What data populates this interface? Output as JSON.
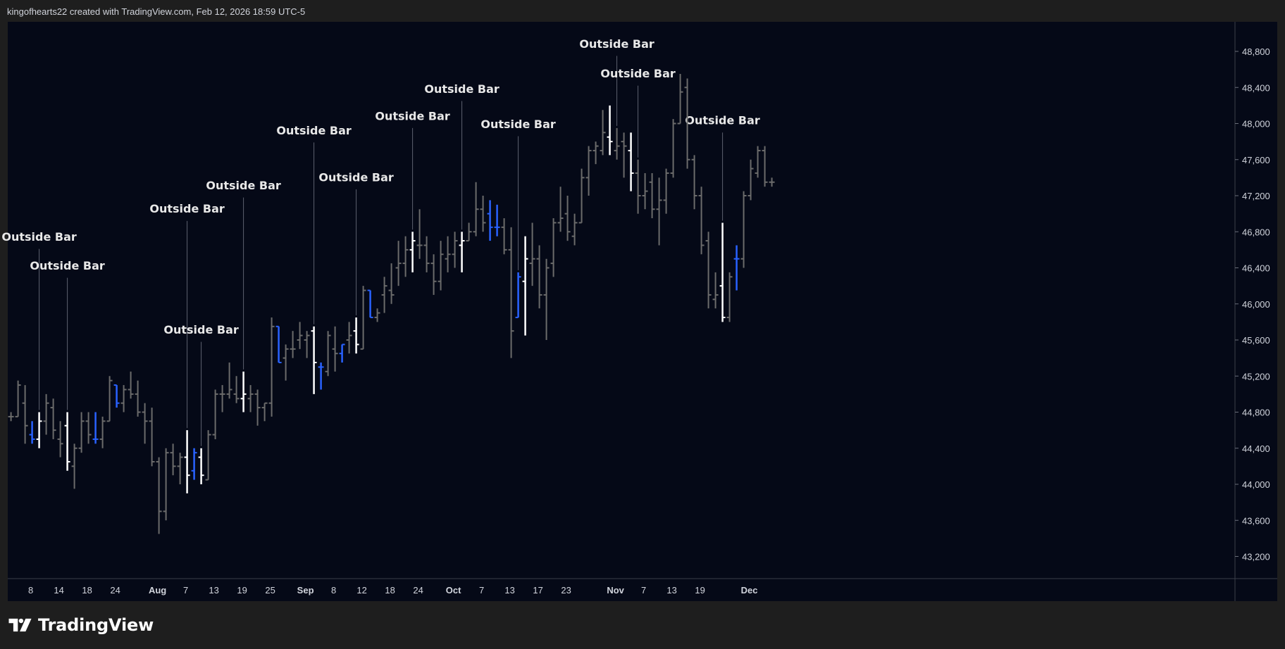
{
  "header": {
    "attribution": "kingofhearts22 created with TradingView.com, Feb 12, 2026 18:59 UTC-5"
  },
  "branding": {
    "logo_icon": "tradingview-logo-icon",
    "wordmark": "TradingView"
  },
  "colors": {
    "background": "#050917",
    "bar_gray": "#6b6b6b",
    "bar_white": "#ffffff",
    "bar_blue": "#2962ff",
    "annotation_text": "#e8e8e8",
    "axis_text": "#d1d4dc"
  },
  "chart_data": {
    "type": "ohlc",
    "title": "",
    "xlabel": "",
    "ylabel": "",
    "ylim": [
      42800,
      49100
    ],
    "grid": false,
    "legend": "none",
    "y_ticks": [
      "48,800",
      "48,400",
      "48,000",
      "47,600",
      "47,200",
      "46,800",
      "46,400",
      "46,000",
      "45,600",
      "45,200",
      "44,800",
      "44,400",
      "44,000",
      "43,600",
      "43,200"
    ],
    "x_ticks": [
      {
        "label": "8",
        "bar": 3,
        "bold": false
      },
      {
        "label": "14",
        "bar": 7,
        "bold": false
      },
      {
        "label": "18",
        "bar": 11,
        "bold": false
      },
      {
        "label": "24",
        "bar": 15,
        "bold": false
      },
      {
        "label": "Aug",
        "bar": 21,
        "bold": true
      },
      {
        "label": "7",
        "bar": 25,
        "bold": false
      },
      {
        "label": "13",
        "bar": 29,
        "bold": false
      },
      {
        "label": "19",
        "bar": 33,
        "bold": false
      },
      {
        "label": "25",
        "bar": 37,
        "bold": false
      },
      {
        "label": "Sep",
        "bar": 42,
        "bold": true
      },
      {
        "label": "8",
        "bar": 46,
        "bold": false
      },
      {
        "label": "12",
        "bar": 50,
        "bold": false
      },
      {
        "label": "18",
        "bar": 54,
        "bold": false
      },
      {
        "label": "24",
        "bar": 58,
        "bold": false
      },
      {
        "label": "Oct",
        "bar": 63,
        "bold": true
      },
      {
        "label": "7",
        "bar": 67,
        "bold": false
      },
      {
        "label": "13",
        "bar": 71,
        "bold": false
      },
      {
        "label": "17",
        "bar": 75,
        "bold": false
      },
      {
        "label": "23",
        "bar": 79,
        "bold": false
      },
      {
        "label": "Nov",
        "bar": 86,
        "bold": true
      },
      {
        "label": "7",
        "bar": 90,
        "bold": false
      },
      {
        "label": "13",
        "bar": 94,
        "bold": false
      },
      {
        "label": "19",
        "bar": 98,
        "bold": false
      },
      {
        "label": "Dec",
        "bar": 105,
        "bold": true
      }
    ],
    "bars": [
      {
        "o": 44750,
        "h": 44800,
        "l": 44700,
        "c": 44750,
        "color": "gray"
      },
      {
        "o": 44750,
        "h": 45150,
        "l": 44750,
        "c": 45100,
        "color": "gray"
      },
      {
        "o": 44900,
        "h": 45100,
        "l": 44450,
        "c": 44650,
        "color": "gray"
      },
      {
        "o": 44550,
        "h": 44700,
        "l": 44450,
        "c": 44500,
        "color": "blue"
      },
      {
        "o": 44500,
        "h": 44800,
        "l": 44400,
        "c": 44700,
        "color": "white"
      },
      {
        "o": 44700,
        "h": 45000,
        "l": 44550,
        "c": 44900,
        "color": "gray"
      },
      {
        "o": 44850,
        "h": 44950,
        "l": 44500,
        "c": 44600,
        "color": "gray"
      },
      {
        "o": 44500,
        "h": 44700,
        "l": 44300,
        "c": 44450,
        "color": "gray"
      },
      {
        "o": 44650,
        "h": 44800,
        "l": 44150,
        "c": 44250,
        "color": "white"
      },
      {
        "o": 44200,
        "h": 44450,
        "l": 43950,
        "c": 44400,
        "color": "gray"
      },
      {
        "o": 44400,
        "h": 44800,
        "l": 44350,
        "c": 44700,
        "color": "gray"
      },
      {
        "o": 44700,
        "h": 44800,
        "l": 44450,
        "c": 44550,
        "color": "gray"
      },
      {
        "o": 44500,
        "h": 44800,
        "l": 44450,
        "c": 44500,
        "color": "blue"
      },
      {
        "o": 44500,
        "h": 44750,
        "l": 44400,
        "c": 44700,
        "color": "gray"
      },
      {
        "o": 44700,
        "h": 45200,
        "l": 44700,
        "c": 45150,
        "color": "gray"
      },
      {
        "o": 45100,
        "h": 45100,
        "l": 44850,
        "c": 44900,
        "color": "blue"
      },
      {
        "o": 44900,
        "h": 45100,
        "l": 44800,
        "c": 45050,
        "color": "gray"
      },
      {
        "o": 45050,
        "h": 45250,
        "l": 44950,
        "c": 45000,
        "color": "gray"
      },
      {
        "o": 45000,
        "h": 45150,
        "l": 44750,
        "c": 44800,
        "color": "gray"
      },
      {
        "o": 44800,
        "h": 44900,
        "l": 44450,
        "c": 44700,
        "color": "gray"
      },
      {
        "o": 44700,
        "h": 44850,
        "l": 44200,
        "c": 44250,
        "color": "gray"
      },
      {
        "o": 44250,
        "h": 44300,
        "l": 43450,
        "c": 43700,
        "color": "gray"
      },
      {
        "o": 43700,
        "h": 44400,
        "l": 43600,
        "c": 44350,
        "color": "gray"
      },
      {
        "o": 44350,
        "h": 44450,
        "l": 44100,
        "c": 44200,
        "color": "gray"
      },
      {
        "o": 44200,
        "h": 44350,
        "l": 44000,
        "c": 44300,
        "color": "gray"
      },
      {
        "o": 44300,
        "h": 44600,
        "l": 43900,
        "c": 44100,
        "color": "white"
      },
      {
        "o": 44150,
        "h": 44400,
        "l": 44050,
        "c": 44350,
        "color": "blue"
      },
      {
        "o": 44300,
        "h": 44400,
        "l": 44000,
        "c": 44100,
        "color": "white"
      },
      {
        "o": 44050,
        "h": 44600,
        "l": 44050,
        "c": 44550,
        "color": "gray"
      },
      {
        "o": 44550,
        "h": 45050,
        "l": 44500,
        "c": 45000,
        "color": "gray"
      },
      {
        "o": 45000,
        "h": 45100,
        "l": 44800,
        "c": 45000,
        "color": "gray"
      },
      {
        "o": 45000,
        "h": 45350,
        "l": 44950,
        "c": 45050,
        "color": "gray"
      },
      {
        "o": 45000,
        "h": 45200,
        "l": 44900,
        "c": 44950,
        "color": "gray"
      },
      {
        "o": 44950,
        "h": 45250,
        "l": 44800,
        "c": 45000,
        "color": "white"
      },
      {
        "o": 44950,
        "h": 45100,
        "l": 44800,
        "c": 45000,
        "color": "gray"
      },
      {
        "o": 45000,
        "h": 45050,
        "l": 44650,
        "c": 44850,
        "color": "gray"
      },
      {
        "o": 44850,
        "h": 44900,
        "l": 44700,
        "c": 44900,
        "color": "gray"
      },
      {
        "o": 44900,
        "h": 45850,
        "l": 44750,
        "c": 45750,
        "color": "gray"
      },
      {
        "o": 45750,
        "h": 45750,
        "l": 45350,
        "c": 45350,
        "color": "blue"
      },
      {
        "o": 45400,
        "h": 45550,
        "l": 45150,
        "c": 45500,
        "color": "gray"
      },
      {
        "o": 45500,
        "h": 45700,
        "l": 45400,
        "c": 45500,
        "color": "gray"
      },
      {
        "o": 45600,
        "h": 45800,
        "l": 45500,
        "c": 45650,
        "color": "gray"
      },
      {
        "o": 45600,
        "h": 45700,
        "l": 45400,
        "c": 45650,
        "color": "gray"
      },
      {
        "o": 45700,
        "h": 45750,
        "l": 45000,
        "c": 45350,
        "color": "white"
      },
      {
        "o": 45300,
        "h": 45350,
        "l": 45050,
        "c": 45300,
        "color": "blue"
      },
      {
        "o": 45250,
        "h": 45700,
        "l": 45200,
        "c": 45650,
        "color": "gray"
      },
      {
        "o": 45500,
        "h": 45750,
        "l": 45250,
        "c": 45450,
        "color": "gray"
      },
      {
        "o": 45450,
        "h": 45550,
        "l": 45350,
        "c": 45550,
        "color": "blue"
      },
      {
        "o": 45600,
        "h": 45800,
        "l": 45450,
        "c": 45650,
        "color": "gray"
      },
      {
        "o": 45700,
        "h": 45850,
        "l": 45450,
        "c": 45550,
        "color": "white"
      },
      {
        "o": 45500,
        "h": 46200,
        "l": 45500,
        "c": 46150,
        "color": "gray"
      },
      {
        "o": 46150,
        "h": 46150,
        "l": 45850,
        "c": 45850,
        "color": "blue"
      },
      {
        "o": 45850,
        "h": 45950,
        "l": 45800,
        "c": 45900,
        "color": "gray"
      },
      {
        "o": 46100,
        "h": 46300,
        "l": 45900,
        "c": 46200,
        "color": "gray"
      },
      {
        "o": 46150,
        "h": 46450,
        "l": 46000,
        "c": 46100,
        "color": "gray"
      },
      {
        "o": 46400,
        "h": 46700,
        "l": 46200,
        "c": 46450,
        "color": "gray"
      },
      {
        "o": 46450,
        "h": 46750,
        "l": 46300,
        "c": 46600,
        "color": "gray"
      },
      {
        "o": 46600,
        "h": 46800,
        "l": 46350,
        "c": 46700,
        "color": "white"
      },
      {
        "o": 46650,
        "h": 47050,
        "l": 46500,
        "c": 46650,
        "color": "gray"
      },
      {
        "o": 46650,
        "h": 46750,
        "l": 46350,
        "c": 46450,
        "color": "gray"
      },
      {
        "o": 46450,
        "h": 46550,
        "l": 46100,
        "c": 46250,
        "color": "gray"
      },
      {
        "o": 46250,
        "h": 46700,
        "l": 46150,
        "c": 46550,
        "color": "gray"
      },
      {
        "o": 46500,
        "h": 46750,
        "l": 46350,
        "c": 46550,
        "color": "gray"
      },
      {
        "o": 46550,
        "h": 46800,
        "l": 46400,
        "c": 46700,
        "color": "gray"
      },
      {
        "o": 46650,
        "h": 46800,
        "l": 46350,
        "c": 46700,
        "color": "white"
      },
      {
        "o": 46700,
        "h": 46900,
        "l": 46700,
        "c": 46800,
        "color": "gray"
      },
      {
        "o": 46800,
        "h": 47350,
        "l": 46750,
        "c": 47050,
        "color": "gray"
      },
      {
        "o": 47050,
        "h": 47200,
        "l": 46800,
        "c": 46900,
        "color": "gray"
      },
      {
        "o": 47000,
        "h": 47150,
        "l": 46700,
        "c": 46850,
        "color": "blue"
      },
      {
        "o": 46850,
        "h": 47100,
        "l": 46750,
        "c": 46850,
        "color": "blue"
      },
      {
        "o": 46850,
        "h": 46950,
        "l": 46550,
        "c": 46600,
        "color": "gray"
      },
      {
        "o": 46600,
        "h": 46850,
        "l": 45400,
        "c": 45700,
        "color": "gray"
      },
      {
        "o": 45850,
        "h": 46350,
        "l": 45850,
        "c": 46300,
        "color": "blue"
      },
      {
        "o": 46250,
        "h": 46750,
        "l": 45650,
        "c": 46500,
        "color": "white"
      },
      {
        "o": 46450,
        "h": 46900,
        "l": 46200,
        "c": 46500,
        "color": "gray"
      },
      {
        "o": 46500,
        "h": 46650,
        "l": 45950,
        "c": 46100,
        "color": "gray"
      },
      {
        "o": 46100,
        "h": 46500,
        "l": 45600,
        "c": 46400,
        "color": "gray"
      },
      {
        "o": 46450,
        "h": 46950,
        "l": 46300,
        "c": 46900,
        "color": "gray"
      },
      {
        "o": 46900,
        "h": 47300,
        "l": 46800,
        "c": 46950,
        "color": "gray"
      },
      {
        "o": 47000,
        "h": 47200,
        "l": 46700,
        "c": 46800,
        "color": "gray"
      },
      {
        "o": 46750,
        "h": 47000,
        "l": 46650,
        "c": 46900,
        "color": "gray"
      },
      {
        "o": 46900,
        "h": 47500,
        "l": 46900,
        "c": 47400,
        "color": "gray"
      },
      {
        "o": 47400,
        "h": 47750,
        "l": 47200,
        "c": 47700,
        "color": "gray"
      },
      {
        "o": 47700,
        "h": 47800,
        "l": 47550,
        "c": 47750,
        "color": "gray"
      },
      {
        "o": 47700,
        "h": 48150,
        "l": 47650,
        "c": 47900,
        "color": "gray"
      },
      {
        "o": 47850,
        "h": 48200,
        "l": 47650,
        "c": 47800,
        "color": "white"
      },
      {
        "o": 47700,
        "h": 47950,
        "l": 47600,
        "c": 47750,
        "color": "gray"
      },
      {
        "o": 47800,
        "h": 47900,
        "l": 47400,
        "c": 47750,
        "color": "gray"
      },
      {
        "o": 47700,
        "h": 47900,
        "l": 47250,
        "c": 47450,
        "color": "white"
      },
      {
        "o": 47450,
        "h": 47600,
        "l": 47000,
        "c": 47200,
        "color": "gray"
      },
      {
        "o": 47200,
        "h": 47450,
        "l": 47050,
        "c": 47250,
        "color": "gray"
      },
      {
        "o": 47350,
        "h": 47450,
        "l": 46950,
        "c": 47050,
        "color": "gray"
      },
      {
        "o": 47050,
        "h": 47400,
        "l": 46650,
        "c": 47150,
        "color": "gray"
      },
      {
        "o": 47150,
        "h": 47500,
        "l": 47000,
        "c": 47450,
        "color": "gray"
      },
      {
        "o": 47450,
        "h": 48050,
        "l": 47400,
        "c": 48000,
        "color": "gray"
      },
      {
        "o": 48000,
        "h": 48550,
        "l": 48000,
        "c": 48350,
        "color": "gray"
      },
      {
        "o": 48400,
        "h": 48500,
        "l": 47500,
        "c": 47600,
        "color": "gray"
      },
      {
        "o": 47600,
        "h": 47650,
        "l": 47050,
        "c": 47200,
        "color": "gray"
      },
      {
        "o": 47200,
        "h": 47300,
        "l": 46550,
        "c": 46650,
        "color": "gray"
      },
      {
        "o": 46700,
        "h": 46800,
        "l": 45950,
        "c": 46100,
        "color": "gray"
      },
      {
        "o": 46050,
        "h": 46350,
        "l": 45950,
        "c": 46100,
        "color": "gray"
      },
      {
        "o": 46200,
        "h": 46900,
        "l": 45800,
        "c": 45850,
        "color": "white"
      },
      {
        "o": 45850,
        "h": 46350,
        "l": 45800,
        "c": 46300,
        "color": "gray"
      },
      {
        "o": 46500,
        "h": 46650,
        "l": 46150,
        "c": 46500,
        "color": "blue"
      },
      {
        "o": 46500,
        "h": 47250,
        "l": 46400,
        "c": 47200,
        "color": "gray"
      },
      {
        "o": 47200,
        "h": 47600,
        "l": 47150,
        "c": 47500,
        "color": "gray"
      },
      {
        "o": 47450,
        "h": 47750,
        "l": 47400,
        "c": 47700,
        "color": "gray"
      },
      {
        "o": 47700,
        "h": 47750,
        "l": 47300,
        "c": 47350,
        "color": "gray"
      },
      {
        "o": 47350,
        "h": 47400,
        "l": 47300,
        "c": 47350,
        "color": "gray"
      }
    ],
    "annotations": [
      {
        "text": "Outside Bar",
        "bar": 4,
        "label_y": 46740,
        "line_top": 46610
      },
      {
        "text": "Outside Bar",
        "bar": 8,
        "label_y": 46420,
        "line_top": 46290
      },
      {
        "text": "Outside Bar",
        "bar": 25,
        "label_y": 47050,
        "line_top": 46920
      },
      {
        "text": "Outside Bar",
        "bar": 27,
        "label_y": 45710,
        "line_top": 45580
      },
      {
        "text": "Outside Bar",
        "bar": 33,
        "label_y": 47310,
        "line_top": 47180
      },
      {
        "text": "Outside Bar",
        "bar": 43,
        "label_y": 47920,
        "line_top": 47790
      },
      {
        "text": "Outside Bar",
        "bar": 49,
        "label_y": 47400,
        "line_top": 47270
      },
      {
        "text": "Outside Bar",
        "bar": 57,
        "label_y": 48080,
        "line_top": 47950
      },
      {
        "text": "Outside Bar",
        "bar": 64,
        "label_y": 48380,
        "line_top": 48250
      },
      {
        "text": "Outside Bar",
        "bar": 72,
        "label_y": 47990,
        "line_top": 47860
      },
      {
        "text": "Outside Bar",
        "bar": 86,
        "label_y": 48880,
        "line_top": 48750
      },
      {
        "text": "Outside Bar",
        "bar": 89,
        "label_y": 48550,
        "line_top": 48420
      },
      {
        "text": "Outside Bar",
        "bar": 101,
        "label_y": 48030,
        "line_top": 47900
      }
    ]
  }
}
